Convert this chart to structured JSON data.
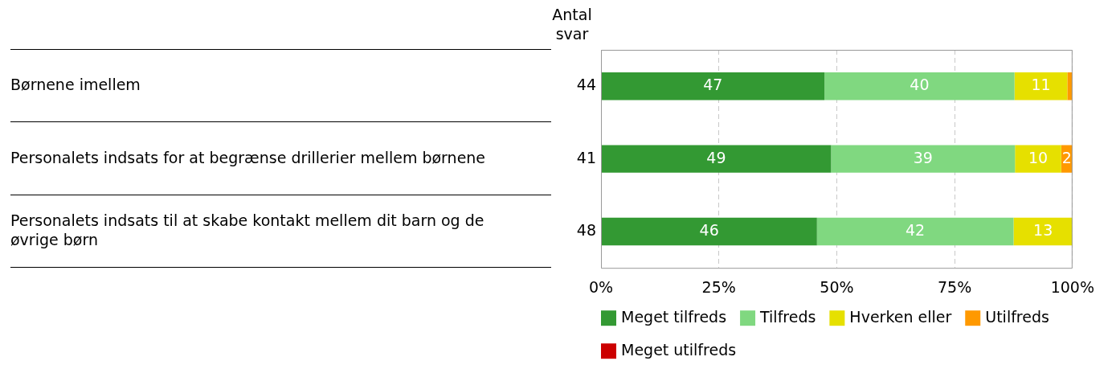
{
  "chart_data": {
    "type": "bar",
    "orientation": "horizontal",
    "stacked": true,
    "categories": [
      "Børnene imellem",
      "Personalets indsats for at begrænse drillerier mellem børnene",
      "Personalets indsats til at skabe kontakt mellem dit barn og de øvrige børn"
    ],
    "series": [
      {
        "name": "Meget tilfreds",
        "color": "#339933",
        "values": [
          47.4,
          48.8,
          45.8
        ],
        "value_labels": [
          "47",
          "49",
          "46"
        ]
      },
      {
        "name": "Tilfreds",
        "color": "#80d880",
        "values": [
          40.3,
          39.0,
          41.7
        ],
        "value_labels": [
          "40",
          "39",
          "42"
        ]
      },
      {
        "name": "Hverken eller",
        "color": "#e6e000",
        "values": [
          11.2,
          9.8,
          12.5
        ],
        "value_labels": [
          "11",
          "10",
          "13"
        ]
      },
      {
        "name": "Utilfreds",
        "color": "#ff9900",
        "values": [
          1.1,
          2.4,
          0
        ],
        "value_labels": [
          null,
          "2",
          null
        ]
      },
      {
        "name": "Meget utilfreds",
        "color": "#cc0000",
        "values": [
          0,
          0,
          0
        ],
        "value_labels": [
          null,
          null,
          null
        ]
      }
    ],
    "xlim": [
      0,
      100
    ],
    "xticks": [
      {
        "value": 0,
        "label": "0%"
      },
      {
        "value": 25,
        "label": "25%"
      },
      {
        "value": 50,
        "label": "50%"
      },
      {
        "value": 75,
        "label": "75%"
      },
      {
        "value": 100,
        "label": "100%"
      }
    ],
    "grid": "x",
    "legend": "bottom",
    "annotations": [
      "Antal svar",
      "44",
      "41",
      "48"
    ]
  }
}
